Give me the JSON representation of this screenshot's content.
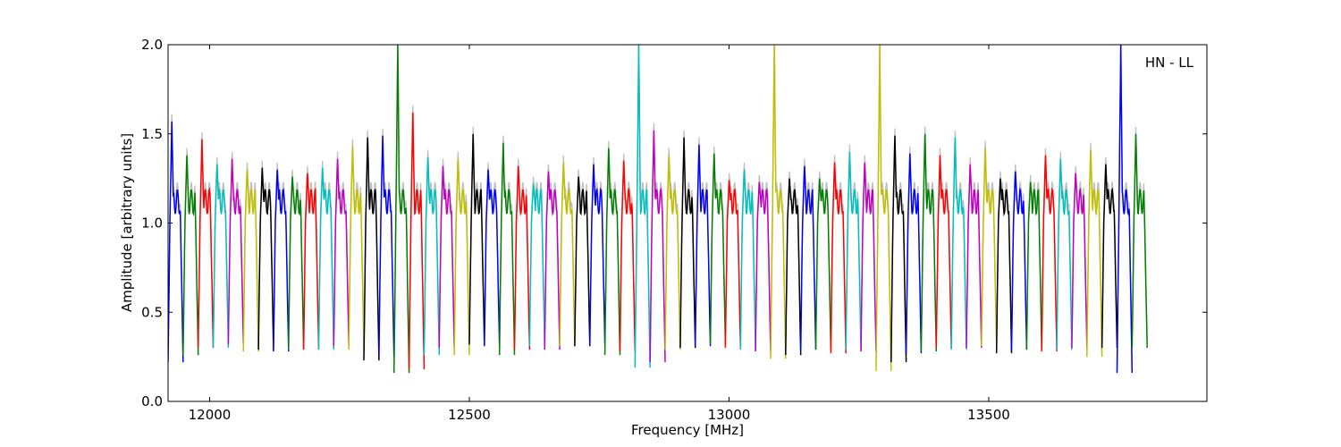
{
  "chart_data": {
    "type": "line",
    "xlabel": "Frequency [MHz]",
    "ylabel": "Amplitude [arbitrary units]",
    "annotation": "HN - LL",
    "xlim": [
      11920,
      13920
    ],
    "ylim": [
      0.0,
      2.0
    ],
    "xticks": [
      12000,
      12500,
      13000,
      13500
    ],
    "xtick_labels": [
      "12000",
      "12500",
      "13000",
      "13500"
    ],
    "yticks": [
      0.0,
      0.5,
      1.0,
      1.5,
      2.0
    ],
    "ytick_labels": [
      "0.0",
      "0.5",
      "1.0",
      "1.5",
      "2.0"
    ],
    "grid": false,
    "legend": "none",
    "channel_width_mhz": 29,
    "color_cycle": [
      "#0000ff",
      "#008000",
      "#ff0000",
      "#00bfbf",
      "#bf00bf",
      "#bfbf00",
      "#000000"
    ],
    "background_color": "#c0c0c0",
    "series": [
      {
        "start": 11920,
        "peak": 1.57,
        "dip": 0.22,
        "color": "#0000ff"
      },
      {
        "start": 11949,
        "peak": 1.38,
        "dip": 0.26,
        "color": "#008000"
      },
      {
        "start": 11978,
        "peak": 1.47,
        "dip": 0.3,
        "color": "#ff0000"
      },
      {
        "start": 12007,
        "peak": 1.33,
        "dip": 0.3,
        "color": "#00bfbf"
      },
      {
        "start": 12036,
        "peak": 1.36,
        "dip": 0.32,
        "color": "#bf00bf"
      },
      {
        "start": 12065,
        "peak": 1.3,
        "dip": 0.28,
        "color": "#bfbf00"
      },
      {
        "start": 12094,
        "peak": 1.31,
        "dip": 0.29,
        "color": "#000000"
      },
      {
        "start": 12123,
        "peak": 1.3,
        "dip": 0.28,
        "color": "#0000ff"
      },
      {
        "start": 12152,
        "peak": 1.26,
        "dip": 0.29,
        "color": "#008000"
      },
      {
        "start": 12181,
        "peak": 1.28,
        "dip": 0.29,
        "color": "#ff0000"
      },
      {
        "start": 12210,
        "peak": 1.31,
        "dip": 0.29,
        "color": "#00bfbf"
      },
      {
        "start": 12239,
        "peak": 1.36,
        "dip": 0.31,
        "color": "#bf00bf"
      },
      {
        "start": 12268,
        "peak": 1.43,
        "dip": 0.29,
        "color": "#bfbf00"
      },
      {
        "start": 12297,
        "peak": 1.48,
        "dip": 0.23,
        "color": "#000000"
      },
      {
        "start": 12326,
        "peak": 1.49,
        "dip": 0.25,
        "color": "#0000ff"
      },
      {
        "start": 12355,
        "peak": 2.0,
        "dip": 0.16,
        "color": "#008000"
      },
      {
        "start": 12384,
        "peak": 1.62,
        "dip": 0.18,
        "color": "#ff0000"
      },
      {
        "start": 12413,
        "peak": 1.37,
        "dip": 0.26,
        "color": "#00bfbf"
      },
      {
        "start": 12442,
        "peak": 1.32,
        "dip": 0.3,
        "color": "#bf00bf"
      },
      {
        "start": 12471,
        "peak": 1.36,
        "dip": 0.26,
        "color": "#bfbf00"
      },
      {
        "start": 12500,
        "peak": 1.5,
        "dip": 0.32,
        "color": "#000000"
      },
      {
        "start": 12529,
        "peak": 1.3,
        "dip": 0.31,
        "color": "#0000ff"
      },
      {
        "start": 12558,
        "peak": 1.45,
        "dip": 0.26,
        "color": "#008000"
      },
      {
        "start": 12587,
        "peak": 1.32,
        "dip": 0.29,
        "color": "#ff0000"
      },
      {
        "start": 12616,
        "peak": 1.22,
        "dip": 0.31,
        "color": "#00bfbf"
      },
      {
        "start": 12645,
        "peak": 1.29,
        "dip": 0.29,
        "color": "#bf00bf"
      },
      {
        "start": 12674,
        "peak": 1.34,
        "dip": 0.31,
        "color": "#bfbf00"
      },
      {
        "start": 12703,
        "peak": 1.26,
        "dip": 0.31,
        "color": "#000000"
      },
      {
        "start": 12732,
        "peak": 1.33,
        "dip": 0.32,
        "color": "#0000ff"
      },
      {
        "start": 12761,
        "peak": 1.42,
        "dip": 0.26,
        "color": "#008000"
      },
      {
        "start": 12790,
        "peak": 1.35,
        "dip": 0.28,
        "color": "#ff0000"
      },
      {
        "start": 12819,
        "peak": 2.0,
        "dip": 0.19,
        "color": "#00bfbf"
      },
      {
        "start": 12848,
        "peak": 1.52,
        "dip": 0.22,
        "color": "#bf00bf"
      },
      {
        "start": 12877,
        "peak": 1.38,
        "dip": 0.29,
        "color": "#bfbf00"
      },
      {
        "start": 12906,
        "peak": 1.48,
        "dip": 0.3,
        "color": "#000000"
      },
      {
        "start": 12935,
        "peak": 1.44,
        "dip": 0.31,
        "color": "#0000ff"
      },
      {
        "start": 12964,
        "peak": 1.39,
        "dip": 0.32,
        "color": "#008000"
      },
      {
        "start": 12993,
        "peak": 1.24,
        "dip": 0.3,
        "color": "#ff0000"
      },
      {
        "start": 13022,
        "peak": 1.3,
        "dip": 0.29,
        "color": "#00bfbf"
      },
      {
        "start": 13051,
        "peak": 1.23,
        "dip": 0.28,
        "color": "#bf00bf"
      },
      {
        "start": 13080,
        "peak": 2.0,
        "dip": 0.24,
        "color": "#bfbf00"
      },
      {
        "start": 13109,
        "peak": 1.25,
        "dip": 0.26,
        "color": "#000000"
      },
      {
        "start": 13138,
        "peak": 1.32,
        "dip": 0.29,
        "color": "#0000ff"
      },
      {
        "start": 13167,
        "peak": 1.25,
        "dip": 0.29,
        "color": "#008000"
      },
      {
        "start": 13196,
        "peak": 1.34,
        "dip": 0.27,
        "color": "#ff0000"
      },
      {
        "start": 13225,
        "peak": 1.4,
        "dip": 0.29,
        "color": "#00bfbf"
      },
      {
        "start": 13254,
        "peak": 1.34,
        "dip": 0.28,
        "color": "#bf00bf"
      },
      {
        "start": 13283,
        "peak": 2.0,
        "dip": 0.17,
        "color": "#bfbf00"
      },
      {
        "start": 13312,
        "peak": 1.49,
        "dip": 0.22,
        "color": "#000000"
      },
      {
        "start": 13341,
        "peak": 1.39,
        "dip": 0.27,
        "color": "#0000ff"
      },
      {
        "start": 13370,
        "peak": 1.5,
        "dip": 0.28,
        "color": "#008000"
      },
      {
        "start": 13399,
        "peak": 1.38,
        "dip": 0.3,
        "color": "#ff0000"
      },
      {
        "start": 13428,
        "peak": 1.48,
        "dip": 0.29,
        "color": "#00bfbf"
      },
      {
        "start": 13457,
        "peak": 1.33,
        "dip": 0.3,
        "color": "#bf00bf"
      },
      {
        "start": 13486,
        "peak": 1.42,
        "dip": 0.31,
        "color": "#bfbf00"
      },
      {
        "start": 13515,
        "peak": 1.25,
        "dip": 0.27,
        "color": "#000000"
      },
      {
        "start": 13544,
        "peak": 1.29,
        "dip": 0.29,
        "color": "#0000ff"
      },
      {
        "start": 13573,
        "peak": 1.23,
        "dip": 0.29,
        "color": "#008000"
      },
      {
        "start": 13602,
        "peak": 1.38,
        "dip": 0.28,
        "color": "#ff0000"
      },
      {
        "start": 13631,
        "peak": 1.36,
        "dip": 0.29,
        "color": "#00bfbf"
      },
      {
        "start": 13660,
        "peak": 1.28,
        "dip": 0.3,
        "color": "#bf00bf"
      },
      {
        "start": 13689,
        "peak": 1.41,
        "dip": 0.25,
        "color": "#bfbf00"
      },
      {
        "start": 13718,
        "peak": 1.33,
        "dip": 0.3,
        "color": "#000000"
      },
      {
        "start": 13747,
        "peak": 2.0,
        "dip": 0.16,
        "color": "#0000ff"
      },
      {
        "start": 13776,
        "peak": 1.5,
        "dip": 0.3,
        "color": "#008000"
      }
    ]
  }
}
